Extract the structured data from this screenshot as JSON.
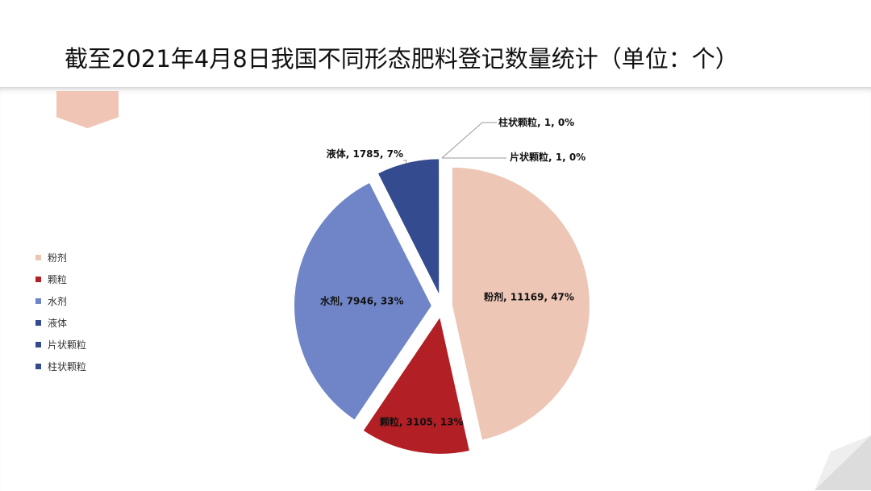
{
  "page": {
    "title": "截至2021年4月8日我国不同形态肥料登记数量统计（单位：个）"
  },
  "chart_data": {
    "type": "pie",
    "title": "",
    "exploded": true,
    "legend_position": "left",
    "slices": [
      {
        "label": "粉剂",
        "value": 11169,
        "percent": "47%",
        "color": "#edc6b6",
        "data_label": "粉剂, 11169, 47%"
      },
      {
        "label": "颗粒",
        "value": 3105,
        "percent": "13%",
        "color": "#b21f24",
        "data_label": "颗粒, 3105, 13%"
      },
      {
        "label": "水剂",
        "value": 7946,
        "percent": "33%",
        "color": "#6f85c7",
        "data_label": "水剂, 7946, 33%"
      },
      {
        "label": "液体",
        "value": 1785,
        "percent": "7%",
        "color": "#344b8f",
        "data_label": "液体, 1785, 7%"
      },
      {
        "label": "片状颗粒",
        "value": 1,
        "percent": "0%",
        "color": "#344b8f",
        "data_label": "片状颗粒, 1, 0%"
      },
      {
        "label": "柱状颗粒",
        "value": 1,
        "percent": "0%",
        "color": "#344b8f",
        "data_label": "柱状颗粒, 1, 0%"
      }
    ],
    "legend": [
      "粉剂",
      "颗粒",
      "水剂",
      "液体",
      "片状颗粒",
      "柱状颗粒"
    ]
  }
}
